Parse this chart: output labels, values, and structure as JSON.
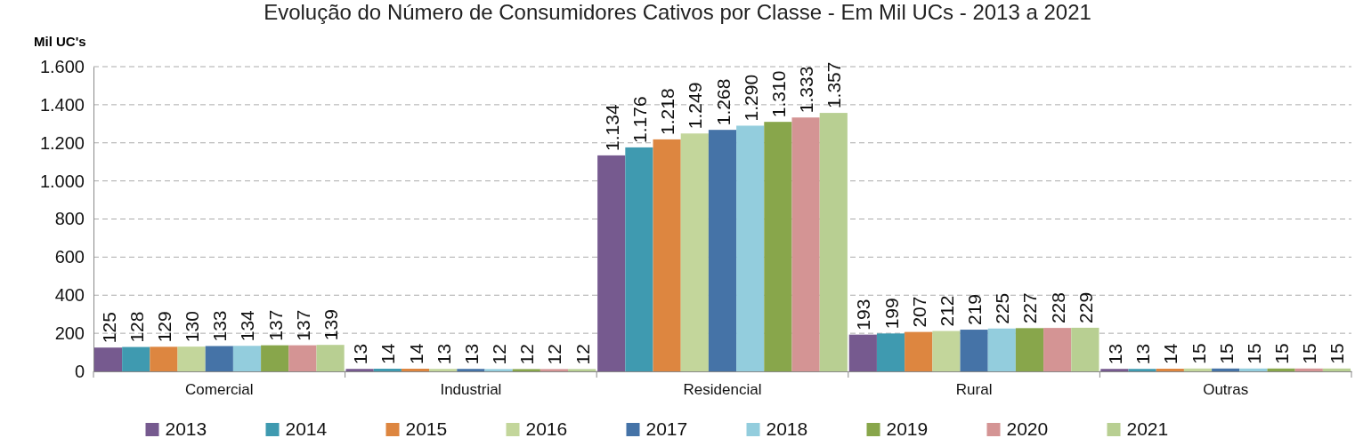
{
  "chart_data": {
    "type": "bar",
    "title": "Evolução do Número de Consumidores Cativos por Classe - Em Mil UCs - 2013 a 2021",
    "ylabel": "Mil UC's",
    "categories": [
      "Comercial",
      "Industrial",
      "Residencial",
      "Rural",
      "Outras"
    ],
    "ylim": [
      0,
      1600
    ],
    "yticks": [
      {
        "value": 0,
        "label": "0"
      },
      {
        "value": 200,
        "label": "200"
      },
      {
        "value": 400,
        "label": "400"
      },
      {
        "value": 600,
        "label": "600"
      },
      {
        "value": 800,
        "label": "800"
      },
      {
        "value": 1000,
        "label": "1.000"
      },
      {
        "value": 1200,
        "label": "1.200"
      },
      {
        "value": 1400,
        "label": "1.400"
      },
      {
        "value": 1600,
        "label": "1.600"
      }
    ],
    "grid": "y",
    "legend": "bottom",
    "series": [
      {
        "name": "2013",
        "color": "#765a8f",
        "values": [
          125,
          13,
          1134,
          193,
          13
        ],
        "value_labels": [
          "125",
          "13",
          "1.134",
          "193",
          "13"
        ]
      },
      {
        "name": "2014",
        "color": "#3f9ab0",
        "values": [
          128,
          14,
          1176,
          199,
          13
        ],
        "value_labels": [
          "128",
          "14",
          "1.176",
          "199",
          "13"
        ]
      },
      {
        "name": "2015",
        "color": "#dd8640",
        "values": [
          129,
          14,
          1218,
          207,
          14
        ],
        "value_labels": [
          "129",
          "14",
          "1.218",
          "207",
          "14"
        ]
      },
      {
        "name": "2016",
        "color": "#c3d69b",
        "values": [
          130,
          13,
          1249,
          212,
          15
        ],
        "value_labels": [
          "130",
          "13",
          "1.249",
          "212",
          "15"
        ]
      },
      {
        "name": "2017",
        "color": "#4573a7",
        "values": [
          133,
          13,
          1268,
          219,
          15
        ],
        "value_labels": [
          "133",
          "13",
          "1.268",
          "219",
          "15"
        ]
      },
      {
        "name": "2018",
        "color": "#93cddd",
        "values": [
          134,
          12,
          1290,
          225,
          15
        ],
        "value_labels": [
          "134",
          "12",
          "1.290",
          "225",
          "15"
        ]
      },
      {
        "name": "2019",
        "color": "#88a64b",
        "values": [
          137,
          12,
          1310,
          227,
          15
        ],
        "value_labels": [
          "137",
          "12",
          "1.310",
          "227",
          "15"
        ]
      },
      {
        "name": "2020",
        "color": "#d49494",
        "values": [
          137,
          12,
          1333,
          228,
          15
        ],
        "value_labels": [
          "137",
          "12",
          "1.333",
          "228",
          "15"
        ]
      },
      {
        "name": "2021",
        "color": "#b8cf92",
        "values": [
          139,
          12,
          1357,
          229,
          15
        ],
        "value_labels": [
          "139",
          "12",
          "1.357",
          "229",
          "15"
        ]
      }
    ]
  }
}
